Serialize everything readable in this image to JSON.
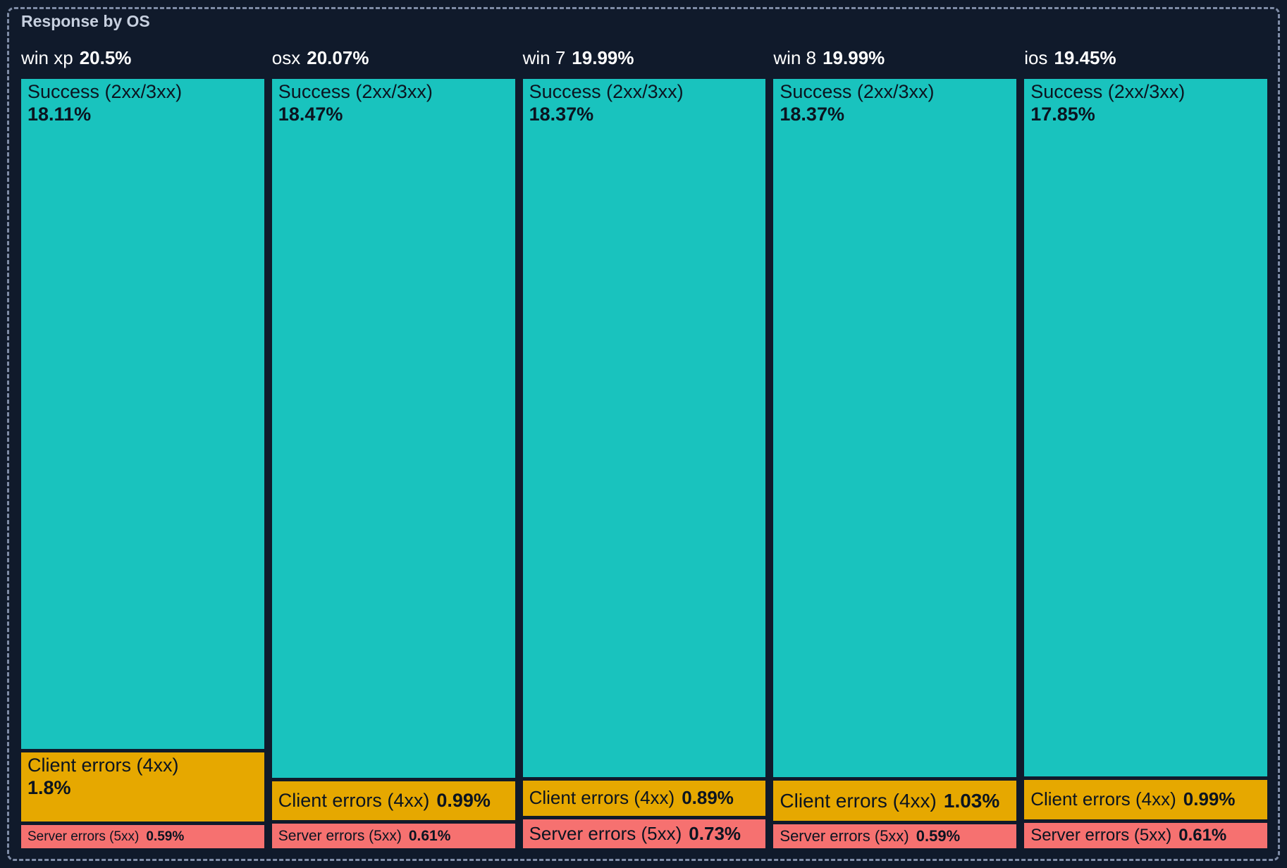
{
  "panel": {
    "title": "Response by OS"
  },
  "colors": {
    "background": "#101A2B",
    "panel_border_dashed": "#7F8CA6",
    "success": "#19C3BE",
    "client_errors": "#E6A800",
    "server_errors": "#F67170",
    "block_text": "#0B1420",
    "column_header_text": "#FFFFFF",
    "title_text": "#C7D0DF"
  },
  "chart_data": {
    "type": "treemap",
    "title": "Response by OS",
    "unit": "%",
    "legend_position": "none",
    "columns": [
      {
        "name": "win xp",
        "total_label": "20.5%",
        "total": 20.5,
        "segments": [
          {
            "label": "Success (2xx/3xx)",
            "pct_label": "18.11%",
            "value": 18.11
          },
          {
            "label": "Client errors (4xx)",
            "pct_label": "1.8%",
            "value": 1.8
          },
          {
            "label": "Server errors (5xx)",
            "pct_label": "0.59%",
            "value": 0.59
          }
        ]
      },
      {
        "name": "osx",
        "total_label": "20.07%",
        "total": 20.07,
        "segments": [
          {
            "label": "Success (2xx/3xx)",
            "pct_label": "18.47%",
            "value": 18.47
          },
          {
            "label": "Client errors (4xx)",
            "pct_label": "0.99%",
            "value": 0.99
          },
          {
            "label": "Server errors (5xx)",
            "pct_label": "0.61%",
            "value": 0.61
          }
        ]
      },
      {
        "name": "win 7",
        "total_label": "19.99%",
        "total": 19.99,
        "segments": [
          {
            "label": "Success (2xx/3xx)",
            "pct_label": "18.37%",
            "value": 18.37
          },
          {
            "label": "Client errors (4xx)",
            "pct_label": "0.89%",
            "value": 0.89
          },
          {
            "label": "Server errors (5xx)",
            "pct_label": "0.73%",
            "value": 0.73
          }
        ]
      },
      {
        "name": "win 8",
        "total_label": "19.99%",
        "total": 19.99,
        "segments": [
          {
            "label": "Success (2xx/3xx)",
            "pct_label": "18.37%",
            "value": 18.37
          },
          {
            "label": "Client errors (4xx)",
            "pct_label": "1.03%",
            "value": 1.03
          },
          {
            "label": "Server errors (5xx)",
            "pct_label": "0.59%",
            "value": 0.59
          }
        ]
      },
      {
        "name": "ios",
        "total_label": "19.45%",
        "total": 19.45,
        "segments": [
          {
            "label": "Success (2xx/3xx)",
            "pct_label": "17.85%",
            "value": 17.85
          },
          {
            "label": "Client errors (4xx)",
            "pct_label": "0.99%",
            "value": 0.99
          },
          {
            "label": "Server errors (5xx)",
            "pct_label": "0.61%",
            "value": 0.61
          }
        ]
      }
    ]
  }
}
